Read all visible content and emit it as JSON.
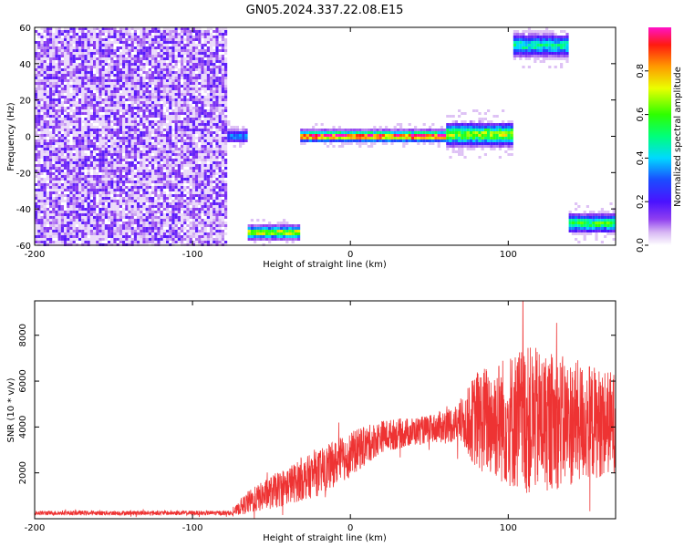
{
  "title": "GN05.2024.337.22.08.E15",
  "chart_data": [
    {
      "type": "heatmap",
      "xlabel": "Height of straight line (km)",
      "ylabel": "Frequency (Hz)",
      "xlim": [
        -200,
        168
      ],
      "ylim": [
        -60,
        60
      ],
      "x_ticks": [
        -200,
        -100,
        0,
        100
      ],
      "y_ticks": [
        -60,
        -40,
        -20,
        0,
        20,
        40,
        60
      ],
      "colorbar": {
        "label": "Normalized spectral amplitude",
        "range": [
          0,
          1
        ],
        "ticks": [
          "0.0",
          "0.2",
          "0.4",
          "0.6",
          "0.8"
        ]
      },
      "regions": [
        {
          "x": [
            -200,
            -78
          ],
          "freq": [
            -60,
            60
          ],
          "kind": "noise",
          "amplitude": 0.05
        },
        {
          "x": [
            -78,
            -65
          ],
          "freq_center": 0,
          "bandwidth": 8,
          "amplitude": 0.35
        },
        {
          "x": [
            -68,
            -32
          ],
          "freq_center": -53,
          "bandwidth": 7,
          "amplitude": 0.75
        },
        {
          "x": [
            -32,
            60
          ],
          "freq_center": 0,
          "bandwidth": 6,
          "amplitude": 1.0
        },
        {
          "x": [
            60,
            104
          ],
          "freq_center": 1,
          "bandwidth": 12,
          "amplitude": 0.7
        },
        {
          "x": [
            104,
            138
          ],
          "freq_center": 50,
          "bandwidth": 12,
          "amplitude": 0.5
        },
        {
          "x": [
            138,
            168
          ],
          "freq_center": -48,
          "bandwidth": 10,
          "amplitude": 0.6
        }
      ]
    },
    {
      "type": "line",
      "xlabel": "Height of straight line (km)",
      "ylabel": "SNR (10 * v/v)",
      "xlim": [
        -200,
        168
      ],
      "ylim": [
        0,
        9500
      ],
      "x_ticks": [
        -200,
        -100,
        0,
        100
      ],
      "y_ticks": [
        2000,
        4000,
        6000,
        8000
      ],
      "color": "#ee3333",
      "envelope": [
        {
          "x": -200,
          "mean": 250,
          "spread": 100
        },
        {
          "x": -75,
          "mean": 250,
          "spread": 100
        },
        {
          "x": -65,
          "mean": 700,
          "spread": 500
        },
        {
          "x": -45,
          "mean": 1300,
          "spread": 800
        },
        {
          "x": -20,
          "mean": 2000,
          "spread": 1000
        },
        {
          "x": 0,
          "mean": 2800,
          "spread": 1000
        },
        {
          "x": 20,
          "mean": 3600,
          "spread": 700
        },
        {
          "x": 50,
          "mean": 3900,
          "spread": 600
        },
        {
          "x": 70,
          "mean": 4200,
          "spread": 900
        },
        {
          "x": 80,
          "mean": 4300,
          "spread": 2200
        },
        {
          "x": 110,
          "mean": 4300,
          "spread": 3300
        },
        {
          "x": 140,
          "mean": 4200,
          "spread": 2800
        },
        {
          "x": 168,
          "mean": 4200,
          "spread": 2200
        }
      ]
    }
  ]
}
